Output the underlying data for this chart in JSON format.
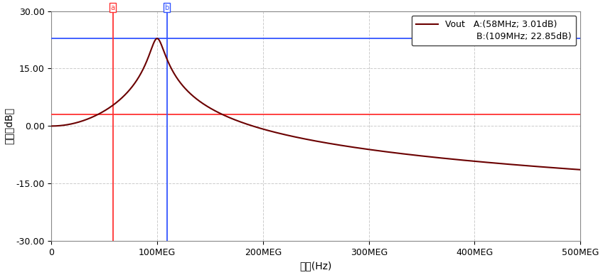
{
  "xmin": 0,
  "xmax": 500000000.0,
  "ymin": -30,
  "ymax": 30,
  "xticks": [
    0,
    100000000.0,
    200000000.0,
    300000000.0,
    400000000.0,
    500000000.0
  ],
  "xticklabels": [
    "0",
    "100MEG",
    "200MEG",
    "300MEG",
    "400MEG",
    "500MEG"
  ],
  "yticks": [
    -30,
    -15,
    0,
    15,
    30
  ],
  "yticklabels": [
    "-30.00",
    "-15.00",
    "0.00",
    "15.00",
    "30.00"
  ],
  "xlabel": "频率(Hz)",
  "ylabel": "增益（dB）",
  "curve_color": "#6b0000",
  "marker_a_x": 58000000.0,
  "marker_a_y": 3.01,
  "marker_b_x": 109000000.0,
  "marker_b_y": 22.85,
  "hline_a_color": "#ff3333",
  "hline_b_color": "#3355ff",
  "vline_a_color": "#ff3333",
  "vline_b_color": "#3355ff",
  "legend_line_label": "Vout",
  "legend_a_label": "A:(58MHz; 3.01dB)",
  "legend_b_label": "B:(109MHz; 22.85dB)",
  "background_color": "#ffffff",
  "grid_color": "#aaaaaa",
  "f0": 100000000.0,
  "Q": 8.55,
  "peak_db": 22.85,
  "dc_gain_db": 0.0,
  "f_start": 500000.0,
  "f_end": 500000000.0,
  "n_points": 8000
}
